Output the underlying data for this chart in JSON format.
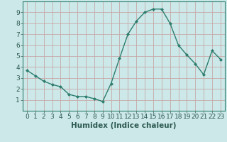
{
  "xlabel": "Humidex (Indice chaleur)",
  "ylabel": "",
  "x_values": [
    0,
    1,
    2,
    3,
    4,
    5,
    6,
    7,
    8,
    9,
    10,
    11,
    12,
    13,
    14,
    15,
    16,
    17,
    18,
    19,
    20,
    21,
    22,
    23
  ],
  "y_values": [
    3.7,
    3.2,
    2.7,
    2.4,
    2.2,
    1.5,
    1.3,
    1.3,
    1.1,
    0.85,
    2.5,
    4.8,
    7.0,
    8.2,
    9.0,
    9.3,
    9.3,
    8.0,
    6.0,
    5.1,
    4.3,
    3.3,
    5.5,
    4.7
  ],
  "line_color": "#2d7d6e",
  "marker": "D",
  "marker_size": 2.0,
  "bg_color": "#cce8e8",
  "grid_color": "#c8a8a8",
  "xlim": [
    -0.5,
    23.5
  ],
  "ylim": [
    0,
    10
  ],
  "yticks": [
    1,
    2,
    3,
    4,
    5,
    6,
    7,
    8,
    9
  ],
  "xticks": [
    0,
    1,
    2,
    3,
    4,
    5,
    6,
    7,
    8,
    9,
    10,
    11,
    12,
    13,
    14,
    15,
    16,
    17,
    18,
    19,
    20,
    21,
    22,
    23
  ],
  "tick_fontsize": 6.5,
  "label_fontsize": 7.5,
  "linewidth": 1.0,
  "text_color": "#2d5a52"
}
